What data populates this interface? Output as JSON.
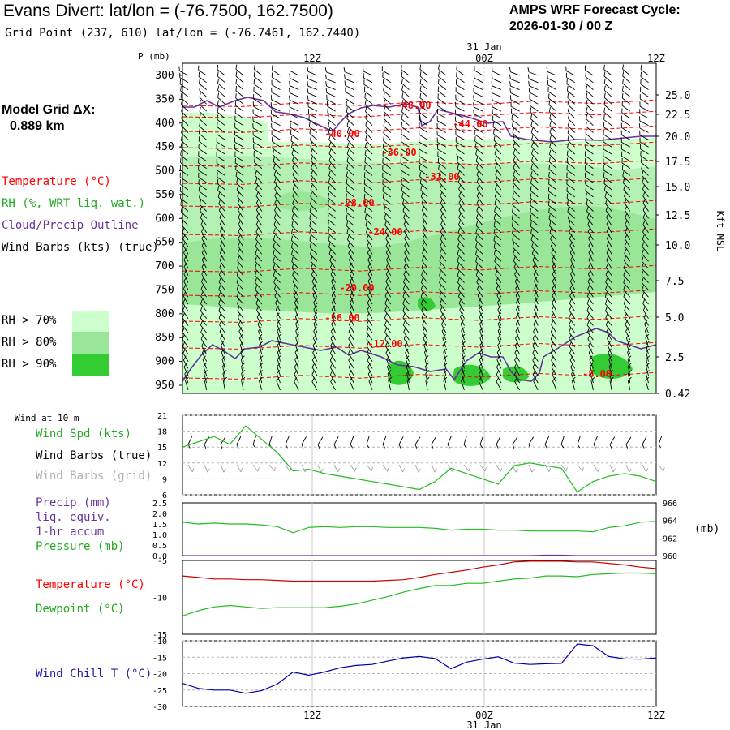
{
  "header": {
    "title": "Evans Divert:  lat/lon = (-76.7500, 162.7500)",
    "grid_point": "Grid Point (237, 610) lat/lon = (-76.7461, 162.7440)",
    "forecast_line1": "AMPS WRF Forecast Cycle:",
    "forecast_line2": "2026-01-30 / 00  Z",
    "model_grid_line1": "Model Grid ΔX:",
    "model_grid_line2": "0.889 km"
  },
  "legend": {
    "temperature": "Temperature (°C)",
    "rh": "RH (%, WRT liq. wat.)",
    "cloud": "Cloud/Precip Outline",
    "wind": "Wind Barbs (kts) (true)",
    "rh70": "RH > 70%",
    "rh80": "RH > 80%",
    "rh90": "RH > 90%"
  },
  "colors": {
    "temperature": "#ff0000",
    "rh70": "#ccffcc",
    "rh80": "#99e699",
    "rh90": "#33cc33",
    "cloud": "#663399",
    "wind_speed": "#22bb22",
    "wind_chill": "#0000aa",
    "grid_barb": "#a0a0a0"
  },
  "chart_data": [
    {
      "type": "contour",
      "name": "vertical cross-section",
      "title": "Evans Divert: lat/lon = (-76.7500, 162.7500)",
      "ylabel": "P (mb)",
      "ylabel_right": "Kft MSL",
      "date_label": "31 Jan",
      "x_ticks": [
        "12Z",
        "00Z",
        "12Z"
      ],
      "y_ticks": [
        300,
        350,
        400,
        450,
        500,
        550,
        600,
        650,
        700,
        750,
        800,
        850,
        900,
        950
      ],
      "y_right_ticks": [
        "25.0",
        "22.5",
        "20.0",
        "17.5",
        "15.0",
        "12.5",
        "10.0",
        "7.5",
        "5.0",
        "2.5",
        "0.42"
      ],
      "temperature_labels": [
        "-48.00",
        "-44.00",
        "-40.00",
        "-36.00",
        "-32.00",
        "-28.00",
        "-24.00",
        "-20.00",
        "-16.00",
        "-12.00",
        "-8.00"
      ]
    },
    {
      "type": "line",
      "name": "wind at 10 m",
      "title": "Wind at 10 m",
      "series": [
        {
          "name": "Wind Spd (kts)",
          "values": [
            15,
            16,
            17,
            15.5,
            19,
            16.5,
            14,
            10.5,
            10.8,
            10,
            9.5,
            9,
            8.5,
            8,
            7.5,
            7,
            8.5,
            11,
            10,
            9,
            8,
            11.5,
            12,
            11.5,
            11,
            6.5,
            8.5,
            9.5,
            10,
            9.5,
            8.5
          ]
        }
      ],
      "ylim": [
        6,
        21
      ],
      "y_ticks": [
        6,
        9,
        12,
        15,
        18,
        21
      ],
      "legend_entries": [
        "Wind Spd (kts)",
        "Wind Barbs (true)",
        "Wind Barbs (grid)"
      ]
    },
    {
      "type": "line",
      "name": "precip and pressure",
      "series": [
        {
          "name": "Precip (mm) liq. equiv. 1-hr accum",
          "values": [
            0,
            0,
            0,
            0,
            0,
            0,
            0,
            0,
            0,
            0,
            0,
            0,
            0,
            0,
            0,
            0,
            0,
            0,
            0,
            0,
            0,
            0,
            0,
            0.02,
            0.02,
            0,
            0,
            0,
            0,
            0,
            0
          ]
        },
        {
          "name": "Pressure (mb)",
          "values": [
            963.8,
            963.6,
            963.7,
            963.6,
            963.6,
            963.5,
            963.3,
            962.6,
            963.2,
            963.3,
            963.2,
            963.3,
            963.3,
            963.2,
            963.2,
            963.2,
            963.1,
            962.9,
            963.0,
            963.0,
            962.9,
            962.9,
            962.8,
            962.8,
            962.8,
            962.8,
            962.7,
            963.2,
            963.4,
            963.8,
            963.9
          ]
        }
      ],
      "ylim_left": [
        0.0,
        2.5
      ],
      "y_ticks_left": [
        "0.0",
        "0.5",
        "1.0",
        "1.5",
        "2.0",
        "2.5"
      ],
      "ylim_right": [
        960,
        966
      ],
      "y_ticks_right": [
        "960",
        "962",
        "964",
        "966"
      ],
      "right_label": "(mb)",
      "legend_entries": [
        "Precip (mm)",
        "liq. equiv.",
        "1-hr accum",
        "Pressure (mb)"
      ]
    },
    {
      "type": "line",
      "name": "temperature and dewpoint",
      "series": [
        {
          "name": "Temperature (°C)",
          "values": [
            -7.1,
            -7.3,
            -7.5,
            -7.5,
            -7.6,
            -7.6,
            -7.7,
            -7.8,
            -7.8,
            -7.8,
            -7.8,
            -7.8,
            -7.8,
            -7.7,
            -7.6,
            -7.3,
            -6.9,
            -6.6,
            -6.3,
            -5.9,
            -5.6,
            -5.2,
            -5.1,
            -5.1,
            -5.1,
            -5.2,
            -5.2,
            -5.4,
            -5.6,
            -5.9,
            -6.1
          ]
        },
        {
          "name": "Dewpoint (°C)",
          "values": [
            -12.5,
            -11.8,
            -11.3,
            -11.1,
            -11.3,
            -11.5,
            -11.4,
            -11.4,
            -11.4,
            -11.4,
            -11.2,
            -10.9,
            -10.4,
            -9.9,
            -9.3,
            -8.8,
            -8.4,
            -8.4,
            -8.1,
            -8.1,
            -7.8,
            -7.5,
            -7.4,
            -7.1,
            -7.1,
            -7.2,
            -6.9,
            -6.8,
            -6.7,
            -6.7,
            -6.8
          ]
        }
      ],
      "ylim": [
        -15,
        -5
      ],
      "y_ticks": [
        -15,
        -10,
        -5
      ],
      "legend_entries": [
        "Temperature (°C)",
        "Dewpoint (°C)"
      ]
    },
    {
      "type": "line",
      "name": "wind chill",
      "series": [
        {
          "name": "Wind Chill T (°C)",
          "values": [
            -23,
            -24.5,
            -25,
            -25,
            -26,
            -25.2,
            -23.2,
            -19.5,
            -20.5,
            -19.5,
            -18.2,
            -17.5,
            -17.2,
            -16.2,
            -15.2,
            -14.8,
            -15.4,
            -18.5,
            -16.5,
            -15.6,
            -14.9,
            -16.8,
            -17.2,
            -17,
            -16.9,
            -11,
            -11.5,
            -14.8,
            -15.5,
            -15.6,
            -15.2
          ]
        }
      ],
      "ylim": [
        -30,
        -10
      ],
      "y_ticks": [
        -30,
        -25,
        -20,
        -15,
        -10
      ],
      "x_ticks": [
        "12Z",
        "00Z",
        "12Z"
      ],
      "date_label": "31 Jan",
      "legend_entries": [
        "Wind Chill T (°C)"
      ]
    }
  ]
}
